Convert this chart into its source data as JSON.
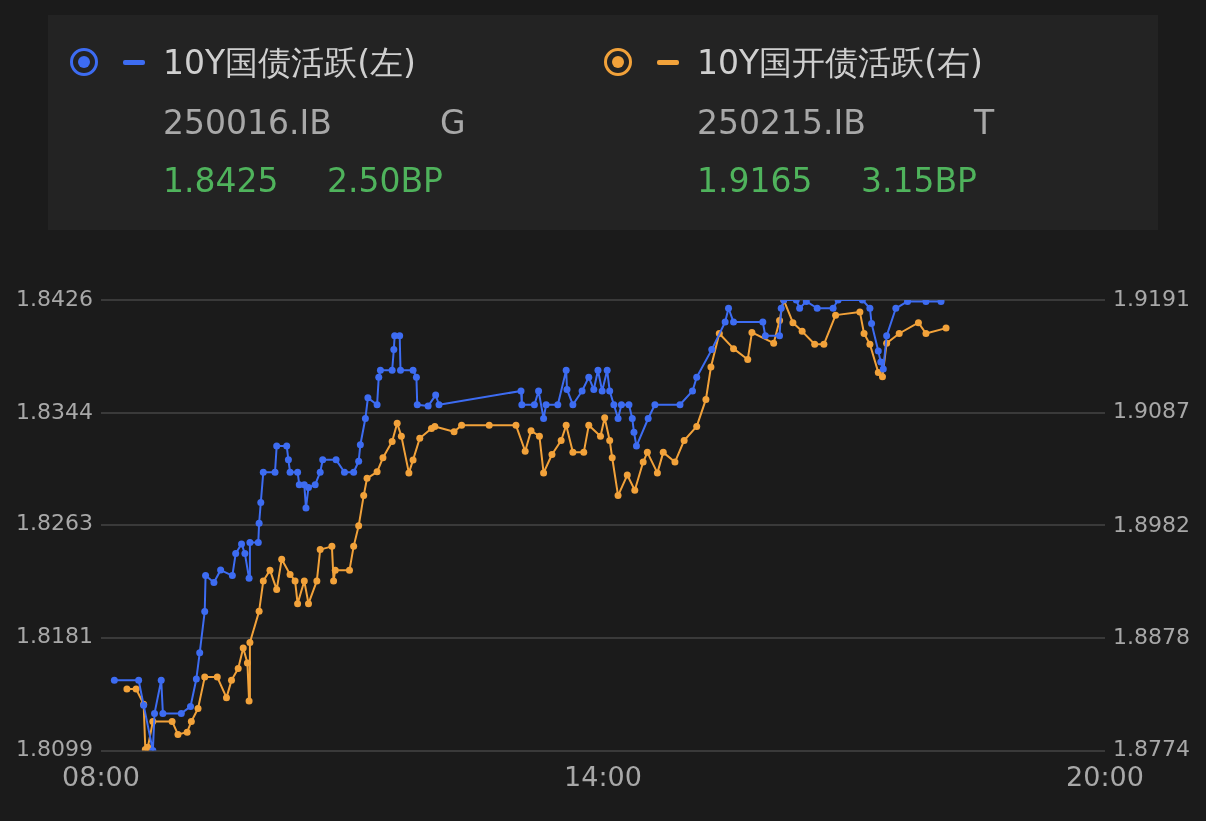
{
  "chart_data": {
    "type": "line",
    "legend": "top",
    "grid": "y",
    "marker": "circle",
    "line_style": "solid",
    "xlim": [
      8,
      20
    ],
    "xticks": [
      {
        "value": 8,
        "label": "08:00"
      },
      {
        "value": 14,
        "label": "14:00"
      },
      {
        "value": 20,
        "label": "20:00"
      }
    ],
    "ylim": [
      1.8099,
      1.8426
    ],
    "yticks": [
      1.8099,
      1.8181,
      1.8263,
      1.8344,
      1.8426
    ],
    "y2lim": [
      1.8774,
      1.9191
    ],
    "y2ticks": [
      1.8774,
      1.8878,
      1.8982,
      1.9087,
      1.9191
    ],
    "annotations": [
      "250016.IB",
      "G",
      "1.8425",
      "2.50BP",
      "250215.IB",
      "T",
      "1.9165",
      "3.15BP"
    ],
    "series": [
      {
        "name": "10Y国债活跃(左)",
        "color": "#3d6cf2",
        "axis": "y",
        "x": [
          8.16,
          8.45,
          8.51,
          8.62,
          8.64,
          8.72,
          8.74,
          8.96,
          9.07,
          9.14,
          9.18,
          9.24,
          9.25,
          9.35,
          9.43,
          9.57,
          9.61,
          9.68,
          9.72,
          9.77,
          9.78,
          9.88,
          9.89,
          9.91,
          9.94,
          10.08,
          10.1,
          10.22,
          10.24,
          10.26,
          10.35,
          10.37,
          10.43,
          10.45,
          10.48,
          10.56,
          10.62,
          10.65,
          10.81,
          10.91,
          11.02,
          11.08,
          11.1,
          11.16,
          11.19,
          11.3,
          11.32,
          11.34,
          11.48,
          11.5,
          11.51,
          11.57,
          11.58,
          11.73,
          11.77,
          11.78,
          11.91,
          12.0,
          12.04,
          13.02,
          13.03,
          13.18,
          13.23,
          13.29,
          13.32,
          13.46,
          13.56,
          13.57,
          13.64,
          13.75,
          13.83,
          13.89,
          13.94,
          13.99,
          14.05,
          14.08,
          14.13,
          14.18,
          14.22,
          14.31,
          14.35,
          14.37,
          14.4,
          14.54,
          14.62,
          14.92,
          15.07,
          15.12,
          15.3,
          15.46,
          15.5,
          15.56,
          15.91,
          15.94,
          16.11,
          16.13,
          16.16,
          16.31,
          16.35,
          16.43,
          16.56,
          16.75,
          16.81,
          17.1,
          17.19,
          17.21,
          17.29,
          17.32,
          17.35,
          17.39,
          17.5,
          17.64,
          17.86,
          18.04
        ],
        "values": [
          1.815,
          1.815,
          1.8132,
          1.8099,
          1.8126,
          1.815,
          1.8126,
          1.8126,
          1.8131,
          1.8151,
          1.817,
          1.82,
          1.8226,
          1.8221,
          1.823,
          1.8226,
          1.8242,
          1.8249,
          1.8242,
          1.8224,
          1.825,
          1.825,
          1.8264,
          1.8279,
          1.8301,
          1.8301,
          1.832,
          1.832,
          1.831,
          1.8301,
          1.8301,
          1.8292,
          1.8292,
          1.8275,
          1.829,
          1.8292,
          1.8301,
          1.831,
          1.831,
          1.8301,
          1.8301,
          1.8309,
          1.8321,
          1.834,
          1.8355,
          1.835,
          1.837,
          1.8375,
          1.8375,
          1.839,
          1.84,
          1.84,
          1.8375,
          1.8375,
          1.837,
          1.835,
          1.8349,
          1.8357,
          1.835,
          1.836,
          1.835,
          1.835,
          1.836,
          1.834,
          1.835,
          1.835,
          1.8375,
          1.8361,
          1.835,
          1.836,
          1.837,
          1.8361,
          1.8375,
          1.836,
          1.8375,
          1.836,
          1.835,
          1.834,
          1.835,
          1.835,
          1.834,
          1.833,
          1.832,
          1.834,
          1.835,
          1.835,
          1.836,
          1.837,
          1.839,
          1.841,
          1.842,
          1.841,
          1.841,
          1.84,
          1.84,
          1.842,
          1.8426,
          1.8426,
          1.842,
          1.8425,
          1.842,
          1.842,
          1.8426,
          1.8426,
          1.842,
          1.8409,
          1.8389,
          1.8381,
          1.8376,
          1.84,
          1.842,
          1.8425,
          1.8425,
          1.8425
        ]
      },
      {
        "name": "10Y国开债活跃(右)",
        "color": "#f2a23a",
        "axis": "y2",
        "x": [
          8.31,
          8.42,
          8.51,
          8.53,
          8.56,
          8.62,
          8.85,
          8.92,
          9.03,
          9.08,
          9.16,
          9.24,
          9.39,
          9.5,
          9.56,
          9.64,
          9.7,
          9.75,
          9.77,
          9.78,
          9.89,
          9.94,
          10.02,
          10.1,
          10.16,
          10.26,
          10.32,
          10.35,
          10.43,
          10.48,
          10.58,
          10.62,
          10.76,
          10.78,
          10.8,
          10.97,
          11.02,
          11.08,
          11.14,
          11.18,
          11.3,
          11.37,
          11.48,
          11.54,
          11.59,
          11.68,
          11.73,
          11.81,
          11.95,
          11.99,
          12.22,
          12.31,
          12.64,
          12.96,
          13.07,
          13.14,
          13.24,
          13.29,
          13.39,
          13.5,
          13.56,
          13.64,
          13.77,
          13.83,
          13.97,
          14.02,
          14.08,
          14.11,
          14.18,
          14.29,
          14.38,
          14.48,
          14.53,
          14.65,
          14.72,
          14.86,
          14.97,
          15.12,
          15.23,
          15.29,
          15.39,
          15.56,
          15.73,
          15.78,
          16.04,
          16.11,
          16.16,
          16.27,
          16.38,
          16.53,
          16.64,
          16.78,
          17.07,
          17.12,
          17.19,
          17.29,
          17.34,
          17.39,
          17.54,
          17.77,
          17.86,
          18.1
        ],
        "values": [
          1.8831,
          1.8831,
          1.8817,
          1.8775,
          1.8777,
          1.8801,
          1.8801,
          1.8789,
          1.8791,
          1.8801,
          1.8813,
          1.8842,
          1.8842,
          1.8823,
          1.8839,
          1.885,
          1.8869,
          1.8855,
          1.882,
          1.8874,
          1.8903,
          1.8931,
          1.8941,
          1.8923,
          1.8951,
          1.8937,
          1.8931,
          1.891,
          1.8931,
          1.891,
          1.8931,
          1.896,
          1.8963,
          1.8931,
          1.8941,
          1.8941,
          1.8963,
          1.8982,
          1.901,
          1.9026,
          1.9032,
          1.9045,
          1.906,
          1.9077,
          1.9065,
          1.9031,
          1.9043,
          1.9063,
          1.9072,
          1.9074,
          1.9069,
          1.9075,
          1.9075,
          1.9075,
          1.9051,
          1.907,
          1.9065,
          1.9031,
          1.9048,
          1.9061,
          1.9075,
          1.905,
          1.905,
          1.9075,
          1.9065,
          1.9082,
          1.9061,
          1.9045,
          1.901,
          1.9029,
          1.9015,
          1.9041,
          1.905,
          1.9031,
          1.905,
          1.9041,
          1.9061,
          1.9074,
          1.9099,
          1.9129,
          1.916,
          1.9146,
          1.9136,
          1.9161,
          1.9151,
          1.9172,
          1.9191,
          1.917,
          1.9162,
          1.915,
          1.915,
          1.9177,
          1.918,
          1.916,
          1.915,
          1.9124,
          1.912,
          1.9151,
          1.916,
          1.917,
          1.916,
          1.9165
        ]
      }
    ]
  }
}
